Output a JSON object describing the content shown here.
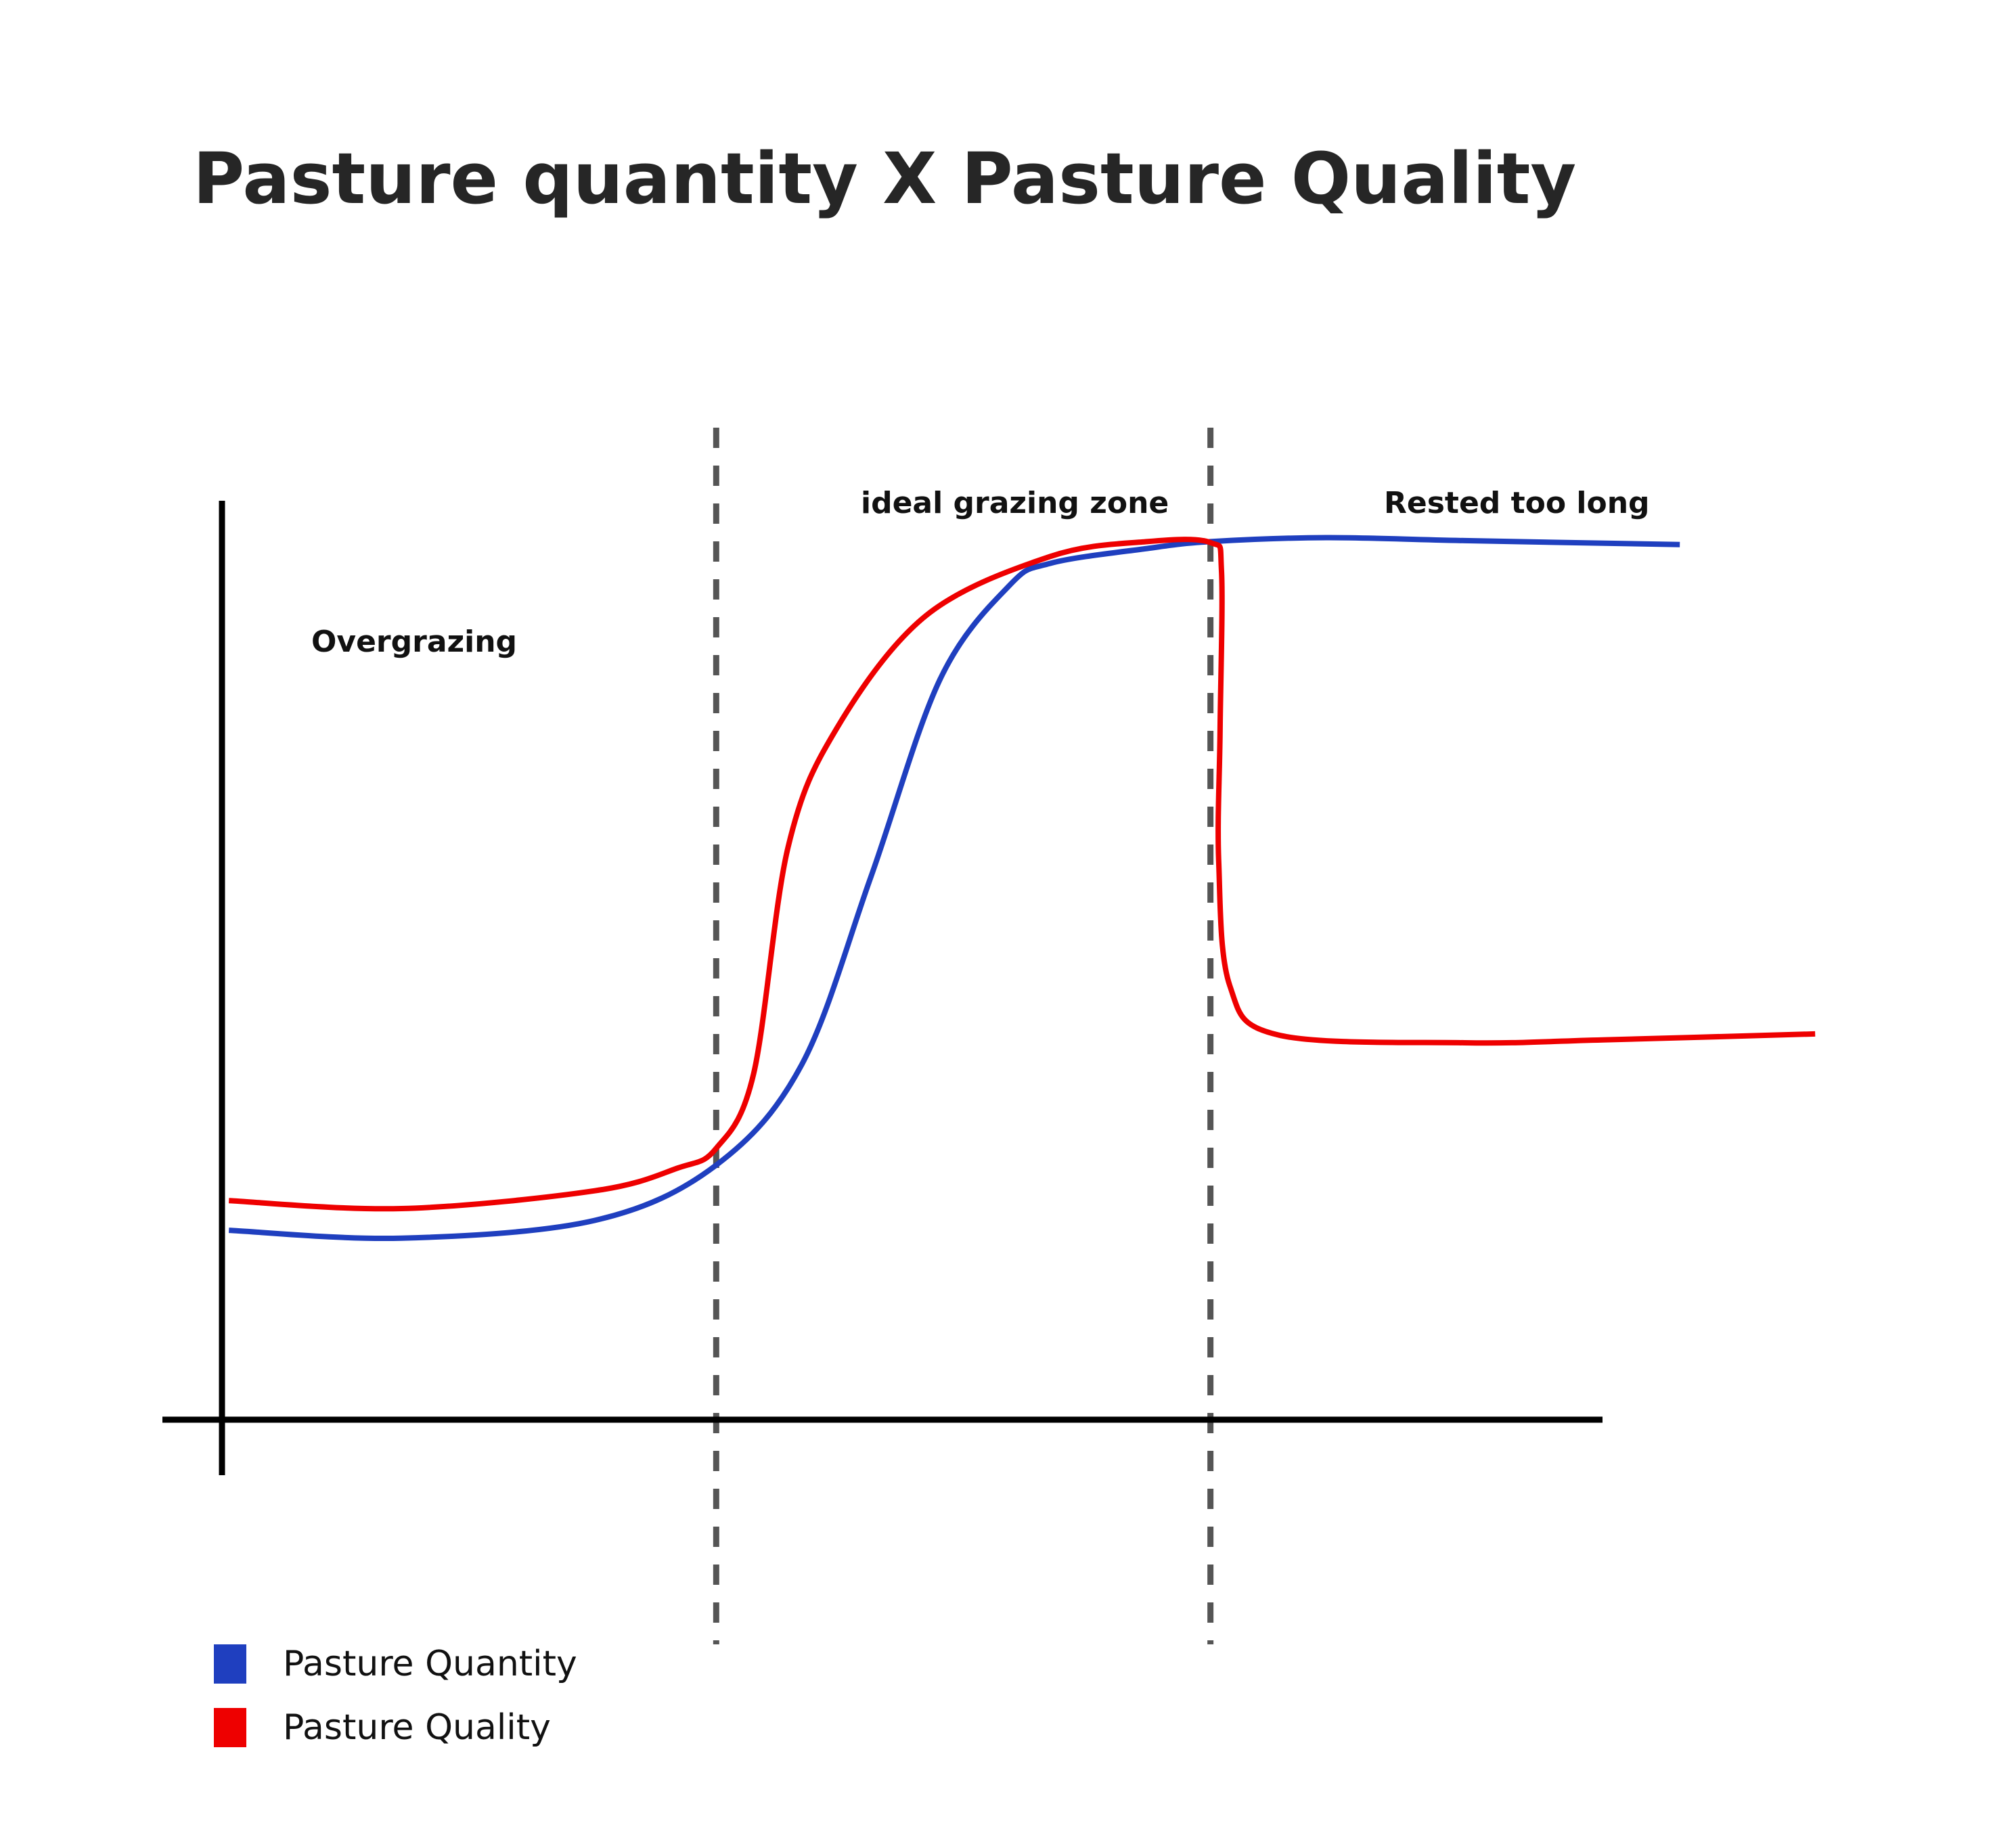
{
  "chart_data": {
    "type": "line",
    "title": "Pasture quantity X Pasture Quality",
    "xlabel": "",
    "ylabel": "",
    "xlim": [
      0,
      100
    ],
    "ylim": [
      0,
      100
    ],
    "grid": false,
    "legend_placement": "bottom-left",
    "zones": [
      {
        "name": "Overgrazing",
        "start": 0,
        "end": 35.8
      },
      {
        "name": "ideal grazing zone",
        "start": 35.8,
        "end": 71.6
      },
      {
        "name": "Rested too long",
        "start": 71.6,
        "end": 100
      }
    ],
    "zone_boundaries": [
      35.8,
      71.6
    ],
    "series": [
      {
        "name": "Pasture Quantity",
        "color": "#1f3fbf",
        "points": [
          [
            0.5,
            19.2
          ],
          [
            13,
            18.4
          ],
          [
            27,
            20.2
          ],
          [
            35.8,
            25.8
          ],
          [
            42,
            36
          ],
          [
            47,
            55
          ],
          [
            52,
            75
          ],
          [
            57,
            84.5
          ],
          [
            60,
            86.8
          ],
          [
            67,
            88.3
          ],
          [
            71.6,
            89
          ],
          [
            80,
            89.4
          ],
          [
            90,
            89.1
          ],
          [
            105.6,
            88.7
          ]
        ]
      },
      {
        "name": "Pasture Quality",
        "color": "#ee0000",
        "points": [
          [
            0.5,
            22.2
          ],
          [
            13,
            21.4
          ],
          [
            27,
            23.2
          ],
          [
            33,
            25.5
          ],
          [
            35.8,
            27.5
          ],
          [
            38.5,
            35
          ],
          [
            41,
            58
          ],
          [
            44.5,
            70
          ],
          [
            51,
            81.5
          ],
          [
            60,
            87.5
          ],
          [
            67,
            89
          ],
          [
            71.6,
            88.9
          ],
          [
            72.4,
            86
          ],
          [
            72.3,
            70
          ],
          [
            72.2,
            56.5
          ],
          [
            73,
            44
          ],
          [
            76.5,
            39
          ],
          [
            90,
            38.2
          ],
          [
            100,
            38.5
          ],
          [
            115.4,
            39.1
          ]
        ]
      }
    ]
  },
  "legend": {
    "items": [
      {
        "label": "Pasture Quantity",
        "color": "#1f3fbf"
      },
      {
        "label": "Pasture Quality",
        "color": "#ee0000"
      }
    ]
  },
  "colors": {
    "axis": "#000000",
    "divider": "#555555",
    "title": "#262626"
  }
}
